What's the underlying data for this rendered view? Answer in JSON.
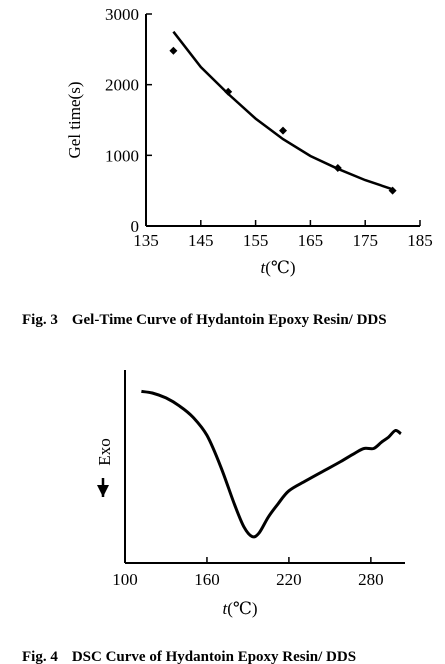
{
  "chart_data": [
    {
      "type": "scatter",
      "fig_label": "Fig. 3",
      "title": "Gel-Time Curve of Hydantoin Epoxy Resin/ DDS",
      "xlabel_italic": "t",
      "xlabel_unit": "(℃)",
      "ylabel": "Gel time(s)",
      "xlim": [
        135,
        185
      ],
      "ylim": [
        0,
        3000
      ],
      "xticks": [
        135,
        145,
        155,
        165,
        175,
        185
      ],
      "yticks": [
        0,
        1000,
        2000,
        3000
      ],
      "grid": false,
      "series": [
        {
          "kind": "points",
          "x": [
            140,
            150,
            160,
            170,
            180
          ],
          "y": [
            2480,
            1900,
            1350,
            820,
            500
          ]
        },
        {
          "kind": "fit-line",
          "x": [
            140,
            145,
            150,
            155,
            160,
            165,
            170,
            175,
            180
          ],
          "y": [
            2750,
            2250,
            1870,
            1520,
            1230,
            990,
            810,
            650,
            520
          ]
        }
      ]
    },
    {
      "type": "line",
      "fig_label": "Fig. 4",
      "title": "DSC Curve of Hydantoin Epoxy Resin/ DDS",
      "xlabel_italic": "t",
      "xlabel_unit": "(℃)",
      "ylabel": "Exo",
      "xlim": [
        100,
        305
      ],
      "xticks": [
        100,
        160,
        220,
        280
      ],
      "ylim": [
        0,
        100
      ],
      "y_tick_labels": false,
      "grid": false,
      "series": [
        {
          "kind": "curve",
          "x": [
            112,
            120,
            130,
            140,
            150,
            160,
            170,
            180,
            187,
            193,
            198,
            205,
            212,
            220,
            232,
            245,
            258,
            268,
            275,
            282,
            288,
            293,
            298,
            302
          ],
          "y": [
            93,
            92,
            89,
            84,
            77,
            66,
            47,
            24,
            10,
            4,
            6,
            16,
            24,
            32,
            38,
            44,
            50,
            55,
            58,
            58,
            62,
            65,
            69,
            67
          ]
        }
      ]
    }
  ]
}
